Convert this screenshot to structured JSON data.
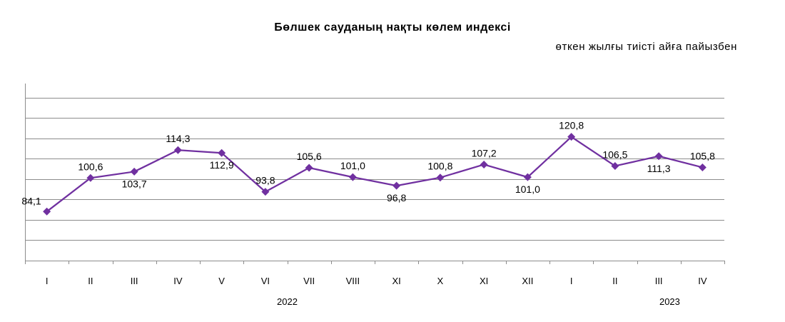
{
  "chart_data": {
    "type": "line",
    "title": "Бөлшек сауданың  нақты көлем индексі",
    "subtitle": "өткен жылғы тиісті айға пайызбен",
    "categories": [
      "I",
      "II",
      "III",
      "IV",
      "V",
      "VI",
      "VII",
      "VIII",
      "XI",
      "X",
      "XI",
      "XII",
      "I",
      "II",
      "III",
      "IV"
    ],
    "year_groups": [
      {
        "label": "2022",
        "from": 0,
        "to": 11
      },
      {
        "label": "2023",
        "from": 12,
        "to": 15
      }
    ],
    "series": [
      {
        "values": [
          84.1,
          100.6,
          103.7,
          114.3,
          112.9,
          93.8,
          105.6,
          101.0,
          96.8,
          100.8,
          107.2,
          101.0,
          120.8,
          106.5,
          111.3,
          105.8
        ],
        "labels": [
          "84,1",
          "100,6",
          "103,7",
          "114,3",
          "112,9",
          "93,8",
          "105,6",
          "101,0",
          "96,8",
          "100,8",
          "107,2",
          "101,0",
          "120,8",
          "106,5",
          "111,3",
          "105,8"
        ],
        "label_pos": [
          "left",
          "above",
          "below",
          "above",
          "below",
          "above",
          "above",
          "above",
          "below",
          "above",
          "above",
          "below",
          "above",
          "above",
          "below",
          "above"
        ],
        "color": "#7030A0"
      }
    ],
    "ylim": [
      60,
      147
    ],
    "gridlines": [
      60,
      70,
      80,
      90,
      100,
      110,
      120,
      130,
      140
    ],
    "grid": true,
    "y_axis_labels_shown": false
  }
}
